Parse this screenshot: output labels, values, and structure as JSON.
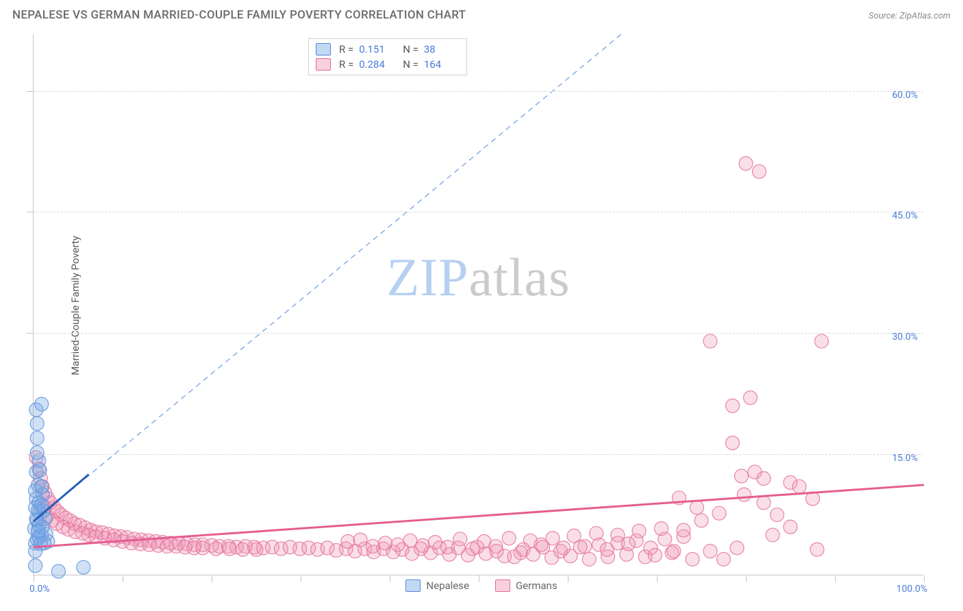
{
  "title": "NEPALESE VS GERMAN MARRIED-COUPLE FAMILY POVERTY CORRELATION CHART",
  "source": "Source: ZipAtlas.com",
  "y_axis_label": "Married-Couple Family Poverty",
  "chart": {
    "type": "scatter",
    "xlim": [
      0,
      100
    ],
    "ylim": [
      0,
      67
    ],
    "x_ticks": [
      0,
      10,
      20,
      30,
      40,
      50,
      60,
      70,
      80,
      90,
      100
    ],
    "x_tick_labels_shown": {
      "0": "0.0%",
      "100": "100.0%"
    },
    "y_ticks": [
      15,
      30,
      45,
      60
    ],
    "y_tick_labels": {
      "15": "15.0%",
      "30": "30.0%",
      "45": "45.0%",
      "60": "60.0%"
    },
    "background_color": "#ffffff",
    "grid_color": "#d8d8d8",
    "axis_color": "#c6c6c6",
    "tick_label_color": "#4a7bd6",
    "marker_radius": 10,
    "series": [
      {
        "name": "Nepalese",
        "color_fill": "rgba(120,170,230,0.35)",
        "color_stroke": "rgba(100,150,220,0.9)",
        "trend_color": "#2a5db8",
        "R": "0.151",
        "N": "38",
        "trend_line": {
          "x1": 0,
          "y1": 6.7,
          "x2": 6.2,
          "y2": 12.5
        },
        "points": [
          [
            0.3,
            20.5
          ],
          [
            0.4,
            18.8
          ],
          [
            0.4,
            17.0
          ],
          [
            0.9,
            21.2
          ],
          [
            0.4,
            4.5
          ],
          [
            0.2,
            1.2
          ],
          [
            2.8,
            0.5
          ],
          [
            5.6,
            1.0
          ],
          [
            0.1,
            5.8
          ],
          [
            0.9,
            5.0
          ],
          [
            0.3,
            9.5
          ],
          [
            0.5,
            11.2
          ],
          [
            0.6,
            9.0
          ],
          [
            0.7,
            7.8
          ],
          [
            0.6,
            6.2
          ],
          [
            1.0,
            10.0
          ],
          [
            1.1,
            8.0
          ],
          [
            1.3,
            7.0
          ],
          [
            1.4,
            5.1
          ],
          [
            1.6,
            4.2
          ],
          [
            0.3,
            12.8
          ],
          [
            0.2,
            10.5
          ],
          [
            0.5,
            8.0
          ],
          [
            0.4,
            6.8
          ],
          [
            0.2,
            4.0
          ],
          [
            0.6,
            4.8
          ],
          [
            0.8,
            3.9
          ],
          [
            1.0,
            6.0
          ],
          [
            0.9,
            11.0
          ],
          [
            0.7,
            13.0
          ],
          [
            0.6,
            14.2
          ],
          [
            0.4,
            15.2
          ],
          [
            0.3,
            7.0
          ],
          [
            0.2,
            8.4
          ],
          [
            0.5,
            5.5
          ],
          [
            0.9,
            8.7
          ],
          [
            1.2,
            4.0
          ],
          [
            0.2,
            3.0
          ]
        ]
      },
      {
        "name": "Germans",
        "color_fill": "rgba(240,150,180,0.30)",
        "color_stroke": "rgba(230,120,160,0.9)",
        "trend_color": "#e55d90",
        "R": "0.284",
        "N": "164",
        "trend_line": {
          "x1": 0,
          "y1": 3.5,
          "x2": 100,
          "y2": 11.2
        },
        "points": [
          [
            0.3,
            14.6
          ],
          [
            0.6,
            13.2
          ],
          [
            0.8,
            12.0
          ],
          [
            1.0,
            11.0
          ],
          [
            1.3,
            10.2
          ],
          [
            1.6,
            9.5
          ],
          [
            1.9,
            9.0
          ],
          [
            2.3,
            8.4
          ],
          [
            2.7,
            7.9
          ],
          [
            3.1,
            7.5
          ],
          [
            3.6,
            7.1
          ],
          [
            4.1,
            6.8
          ],
          [
            4.6,
            6.4
          ],
          [
            5.2,
            6.2
          ],
          [
            5.8,
            5.9
          ],
          [
            6.4,
            5.6
          ],
          [
            7.0,
            5.4
          ],
          [
            7.7,
            5.3
          ],
          [
            8.4,
            5.1
          ],
          [
            9.1,
            4.9
          ],
          [
            9.8,
            4.8
          ],
          [
            10.5,
            4.7
          ],
          [
            11.3,
            4.5
          ],
          [
            12.1,
            4.4
          ],
          [
            12.9,
            4.3
          ],
          [
            13.7,
            4.2
          ],
          [
            14.5,
            4.1
          ],
          [
            15.4,
            4.0
          ],
          [
            16.3,
            4.0
          ],
          [
            17.2,
            3.9
          ],
          [
            18.1,
            3.8
          ],
          [
            19.0,
            3.8
          ],
          [
            20.0,
            3.7
          ],
          [
            20.9,
            3.6
          ],
          [
            21.9,
            3.6
          ],
          [
            22.8,
            3.5
          ],
          [
            23.8,
            3.6
          ],
          [
            24.8,
            3.5
          ],
          [
            25.8,
            3.4
          ],
          [
            26.8,
            3.5
          ],
          [
            27.8,
            3.3
          ],
          [
            28.8,
            3.5
          ],
          [
            29.9,
            3.3
          ],
          [
            30.9,
            3.4
          ],
          [
            31.9,
            3.2
          ],
          [
            33.0,
            3.4
          ],
          [
            34.0,
            3.1
          ],
          [
            35.1,
            3.3
          ],
          [
            36.1,
            3.0
          ],
          [
            37.2,
            3.3
          ],
          [
            38.2,
            2.9
          ],
          [
            39.3,
            3.3
          ],
          [
            40.4,
            2.9
          ],
          [
            41.4,
            3.2
          ],
          [
            42.5,
            2.7
          ],
          [
            43.5,
            3.3
          ],
          [
            44.6,
            2.8
          ],
          [
            45.6,
            3.4
          ],
          [
            46.7,
            2.6
          ],
          [
            47.7,
            3.4
          ],
          [
            48.8,
            2.5
          ],
          [
            49.8,
            3.5
          ],
          [
            50.8,
            2.7
          ],
          [
            51.9,
            3.6
          ],
          [
            52.9,
            2.4
          ],
          [
            35.3,
            4.2
          ],
          [
            36.7,
            4.4
          ],
          [
            38.1,
            3.6
          ],
          [
            39.5,
            4.0
          ],
          [
            40.9,
            3.8
          ],
          [
            42.3,
            4.3
          ],
          [
            43.7,
            3.7
          ],
          [
            45.1,
            4.1
          ],
          [
            46.5,
            3.5
          ],
          [
            47.9,
            4.5
          ],
          [
            49.3,
            3.3
          ],
          [
            50.6,
            4.2
          ],
          [
            52.0,
            3.0
          ],
          [
            53.4,
            4.6
          ],
          [
            54.7,
            2.8
          ],
          [
            54.0,
            2.3
          ],
          [
            55.0,
            3.2
          ],
          [
            56.1,
            2.6
          ],
          [
            57.2,
            3.5
          ],
          [
            58.2,
            2.2
          ],
          [
            59.2,
            3.0
          ],
          [
            60.3,
            2.4
          ],
          [
            61.4,
            3.5
          ],
          [
            62.4,
            2.0
          ],
          [
            63.5,
            3.8
          ],
          [
            64.5,
            2.3
          ],
          [
            65.6,
            4.0
          ],
          [
            66.6,
            2.6
          ],
          [
            67.7,
            4.3
          ],
          [
            68.7,
            2.3
          ],
          [
            55.8,
            4.3
          ],
          [
            57.0,
            3.8
          ],
          [
            58.3,
            4.6
          ],
          [
            59.5,
            3.4
          ],
          [
            60.7,
            4.9
          ],
          [
            61.9,
            3.6
          ],
          [
            63.2,
            5.2
          ],
          [
            64.4,
            3.2
          ],
          [
            65.6,
            5.0
          ],
          [
            66.8,
            3.9
          ],
          [
            68.0,
            5.5
          ],
          [
            69.3,
            3.4
          ],
          [
            70.5,
            5.8
          ],
          [
            71.7,
            2.8
          ],
          [
            73.0,
            4.8
          ],
          [
            69.8,
            2.5
          ],
          [
            70.9,
            4.5
          ],
          [
            71.9,
            3.0
          ],
          [
            73.0,
            5.6
          ],
          [
            74.0,
            2.0
          ],
          [
            75.0,
            6.8
          ],
          [
            76.0,
            3.0
          ],
          [
            77.0,
            7.7
          ],
          [
            77.5,
            2.0
          ],
          [
            79.0,
            3.4
          ],
          [
            72.5,
            9.6
          ],
          [
            74.5,
            8.4
          ],
          [
            78.5,
            16.4
          ],
          [
            79.8,
            10.0
          ],
          [
            79.5,
            12.3
          ],
          [
            81.0,
            12.8
          ],
          [
            82.0,
            9.0
          ],
          [
            82.0,
            12.0
          ],
          [
            83.5,
            7.5
          ],
          [
            85.0,
            11.5
          ],
          [
            85.0,
            6.0
          ],
          [
            86.0,
            11.0
          ],
          [
            87.5,
            9.5
          ],
          [
            88.5,
            29.0
          ],
          [
            83.0,
            5.0
          ],
          [
            80.0,
            51.0
          ],
          [
            81.5,
            50.0
          ],
          [
            76.0,
            29.0
          ],
          [
            78.5,
            21.0
          ],
          [
            80.5,
            22.0
          ],
          [
            88.0,
            3.2
          ],
          [
            1.2,
            8.5
          ],
          [
            1.5,
            7.3
          ],
          [
            2.1,
            6.8
          ],
          [
            2.6,
            6.4
          ],
          [
            3.3,
            6.0
          ],
          [
            3.9,
            5.7
          ],
          [
            4.7,
            5.4
          ],
          [
            5.5,
            5.2
          ],
          [
            6.2,
            5.0
          ],
          [
            7.0,
            4.8
          ],
          [
            8.0,
            4.6
          ],
          [
            9.0,
            4.4
          ],
          [
            10.0,
            4.2
          ],
          [
            11.0,
            4.0
          ],
          [
            12.0,
            3.9
          ],
          [
            13.0,
            3.8
          ],
          [
            14.0,
            3.7
          ],
          [
            15.0,
            3.6
          ],
          [
            16.0,
            3.6
          ],
          [
            17.0,
            3.5
          ],
          [
            18.0,
            3.4
          ],
          [
            19.0,
            3.4
          ],
          [
            20.5,
            3.3
          ],
          [
            22.0,
            3.3
          ],
          [
            23.5,
            3.2
          ],
          [
            25.0,
            3.2
          ]
        ]
      }
    ],
    "reference_line": {
      "x1": 0,
      "y1": 6.7,
      "x2": 66,
      "y2": 67,
      "color": "#7ea9e6",
      "dash": "8 6"
    }
  },
  "top_legend": {
    "rows": [
      {
        "swatch": "blue",
        "R_label": "R =",
        "R": "0.151",
        "N_label": "N =",
        "N": "38"
      },
      {
        "swatch": "pink",
        "R_label": "R =",
        "R": "0.284",
        "N_label": "N =",
        "N": "164"
      }
    ]
  },
  "bottom_legend": [
    {
      "swatch": "blue",
      "label": "Nepalese"
    },
    {
      "swatch": "pink",
      "label": "Germans"
    }
  ],
  "watermark": {
    "part1": "ZIP",
    "part2": "atlas"
  }
}
